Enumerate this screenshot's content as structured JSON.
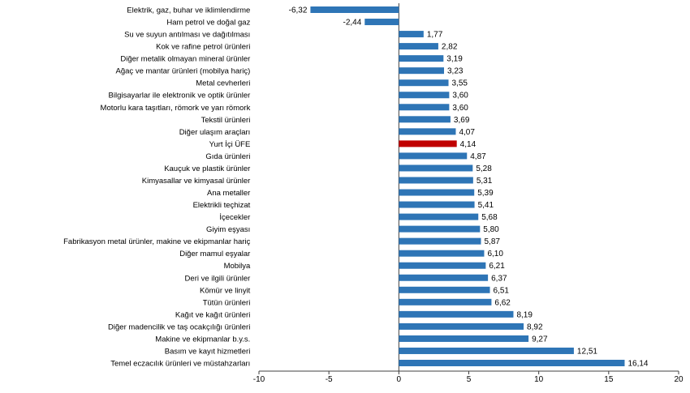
{
  "chart_data": {
    "type": "bar",
    "orientation": "horizontal",
    "title": "",
    "xlabel": "",
    "ylabel": "",
    "xlim": [
      -10,
      20
    ],
    "xticks": [
      "-10",
      "-5",
      "0",
      "5",
      "10",
      "15",
      "20"
    ],
    "grid": false,
    "bar_color": "#2e75b6",
    "highlight_color": "#c00000",
    "bars": [
      {
        "label": "Elektrik, gaz, buhar ve iklimlendirme",
        "value": -6.32,
        "value_label": "-6,32"
      },
      {
        "label": "Ham petrol ve doğal gaz",
        "value": -2.44,
        "value_label": "-2,44"
      },
      {
        "label": "Su ve suyun antılması ve dağıtılması",
        "value": 1.77,
        "value_label": "1,77"
      },
      {
        "label": "Kok ve rafine petrol ürünleri",
        "value": 2.82,
        "value_label": "2,82"
      },
      {
        "label": "Diğer metalik olmayan mineral ürünler",
        "value": 3.19,
        "value_label": "3,19"
      },
      {
        "label": "Ağaç ve mantar ürünleri (mobilya hariç)",
        "value": 3.23,
        "value_label": "3,23"
      },
      {
        "label": "Metal cevherleri",
        "value": 3.55,
        "value_label": "3,55"
      },
      {
        "label": "Bilgisayarlar ile elektronik ve optik ürünler",
        "value": 3.6,
        "value_label": "3,60"
      },
      {
        "label": "Motorlu kara taşıtları, römork ve yarı römork",
        "value": 3.6,
        "value_label": "3,60"
      },
      {
        "label": "Tekstil ürünleri",
        "value": 3.69,
        "value_label": "3,69"
      },
      {
        "label": "Diğer ulaşım araçları",
        "value": 4.07,
        "value_label": "4,07"
      },
      {
        "label": "Yurt İçi ÜFE",
        "value": 4.14,
        "value_label": "4,14",
        "highlight": true
      },
      {
        "label": "Gıda ürünleri",
        "value": 4.87,
        "value_label": "4,87"
      },
      {
        "label": "Kauçuk ve plastik ürünler",
        "value": 5.28,
        "value_label": "5,28"
      },
      {
        "label": "Kimyasallar ve kimyasal ürünler",
        "value": 5.31,
        "value_label": "5,31"
      },
      {
        "label": "Ana metaller",
        "value": 5.39,
        "value_label": "5,39"
      },
      {
        "label": "Elektrikli teçhizat",
        "value": 5.41,
        "value_label": "5,41"
      },
      {
        "label": "İçecekler",
        "value": 5.68,
        "value_label": "5,68"
      },
      {
        "label": "Giyim eşyası",
        "value": 5.8,
        "value_label": "5,80"
      },
      {
        "label": "Fabrikasyon metal ürünler, makine ve ekipmanlar hariç",
        "value": 5.87,
        "value_label": "5,87"
      },
      {
        "label": "Diğer mamul eşyalar",
        "value": 6.1,
        "value_label": "6,10"
      },
      {
        "label": "Mobilya",
        "value": 6.21,
        "value_label": "6,21"
      },
      {
        "label": "Deri ve ilgili ürünler",
        "value": 6.37,
        "value_label": "6,37"
      },
      {
        "label": "Kömür ve linyit",
        "value": 6.51,
        "value_label": "6,51"
      },
      {
        "label": "Tütün ürünleri",
        "value": 6.62,
        "value_label": "6,62"
      },
      {
        "label": "Kağıt ve kağıt ürünleri",
        "value": 8.19,
        "value_label": "8,19"
      },
      {
        "label": "Diğer madencilik ve taş ocakçılığı ürünleri",
        "value": 8.92,
        "value_label": "8,92"
      },
      {
        "label": "Makine ve ekipmanlar b.y.s.",
        "value": 9.27,
        "value_label": "9,27"
      },
      {
        "label": "Basım ve kayıt hizmetleri",
        "value": 12.51,
        "value_label": "12,51"
      },
      {
        "label": "Temel eczacılık ürünleri ve müstahzarları",
        "value": 16.14,
        "value_label": "16,14"
      }
    ]
  }
}
